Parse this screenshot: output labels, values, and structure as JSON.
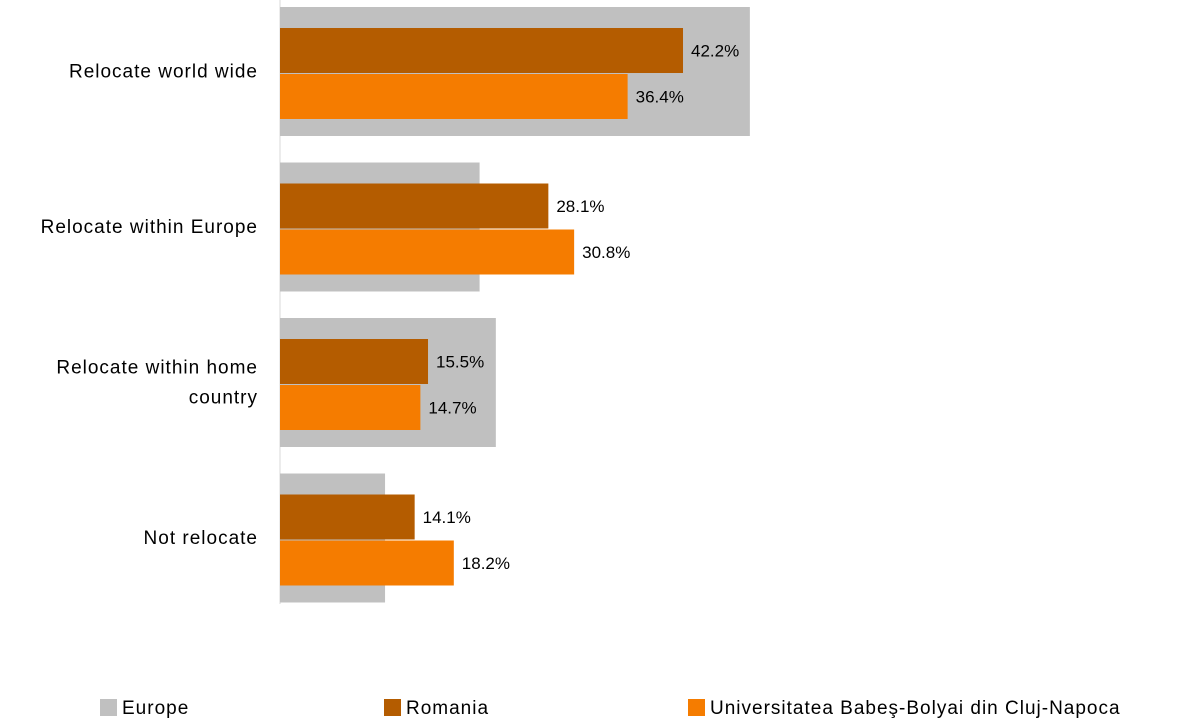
{
  "chart_data": {
    "type": "bar",
    "orientation": "horizontal",
    "categories": [
      [
        "Relocate world wide"
      ],
      [
        "Relocate within Europe"
      ],
      [
        "Relocate within home",
        "country"
      ],
      [
        "Not relocate"
      ]
    ],
    "series": [
      {
        "name": "Europe",
        "values": [
          49.2,
          20.9,
          22.6,
          11.0
        ],
        "color": "#c0c0c0",
        "labeled": false
      },
      {
        "name": "Romania",
        "values": [
          42.2,
          28.1,
          15.5,
          14.1
        ],
        "color": "#b45c00",
        "labeled": true
      },
      {
        "name": "Universitatea Babeş-Bolyai din Cluj-Napoca",
        "values": [
          36.4,
          30.8,
          14.7,
          18.2
        ],
        "color": "#f57c00",
        "labeled": true
      }
    ],
    "value_suffix": "%",
    "xlim": [
      0,
      100
    ],
    "grid": false,
    "legend_position": "bottom"
  }
}
